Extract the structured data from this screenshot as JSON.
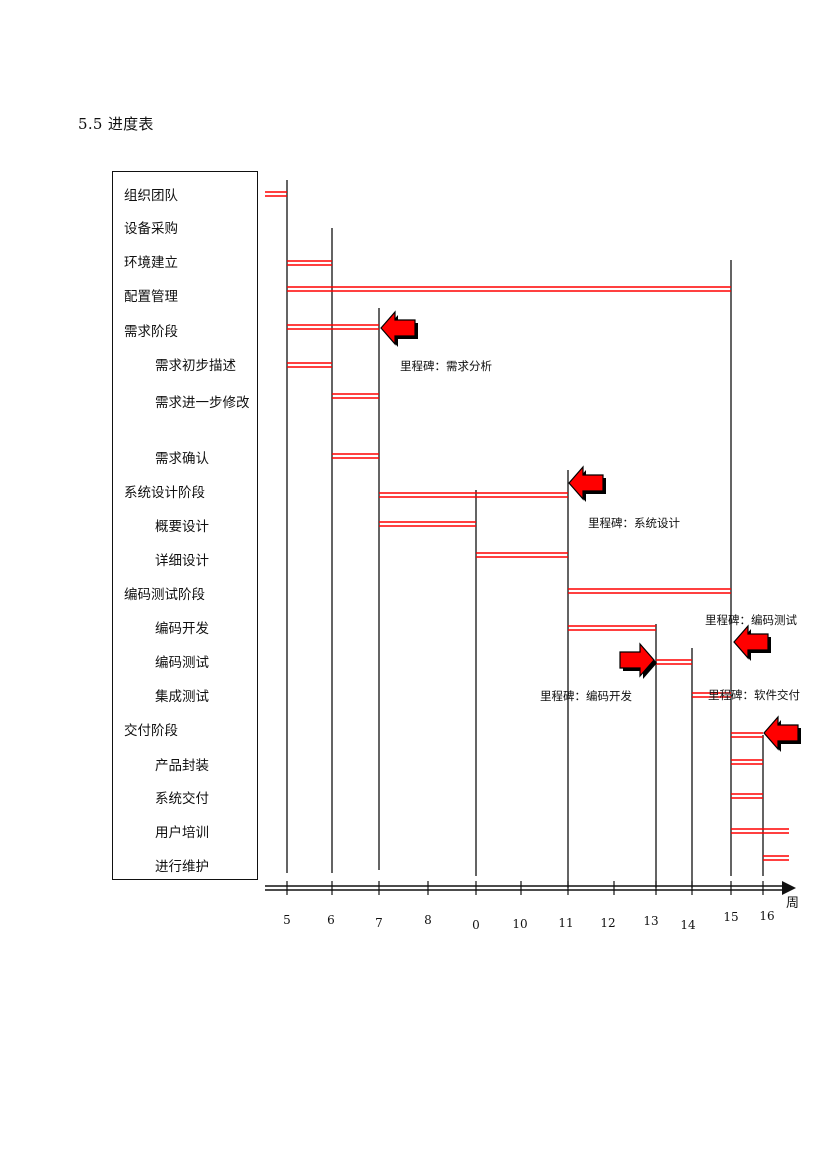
{
  "section_heading": "5.5 进度表",
  "chart_data": {
    "type": "gantt",
    "x_axis_unit": "周",
    "x_ticks": [
      "5",
      "6",
      "7",
      "8",
      "0",
      "10",
      "11",
      "12",
      "13",
      "14",
      "15",
      "16"
    ],
    "tasks": [
      {
        "name": "组织团队",
        "level": 1,
        "start": 4.5,
        "end": 5
      },
      {
        "name": "设备采购",
        "level": 1,
        "start": null,
        "end": null
      },
      {
        "name": "环境建立",
        "level": 1,
        "start": 5,
        "end": 6
      },
      {
        "name": "配置管理",
        "level": 1,
        "start": 5,
        "end": 15
      },
      {
        "name": "需求阶段",
        "level": 1,
        "start": 5,
        "end": 7
      },
      {
        "name": "需求初步描述",
        "level": 2,
        "start": 5,
        "end": 6
      },
      {
        "name": "需求进一步修改",
        "level": 2,
        "start": 6,
        "end": 7
      },
      {
        "name": "需求确认",
        "level": 2,
        "start": 6,
        "end": 7
      },
      {
        "name": "系统设计阶段",
        "level": 1,
        "start": 7,
        "end": 11
      },
      {
        "name": "概要设计",
        "level": 2,
        "start": 7,
        "end": 9
      },
      {
        "name": "详细设计",
        "level": 2,
        "start": 9,
        "end": 11
      },
      {
        "name": "编码测试阶段",
        "level": 1,
        "start": 11,
        "end": 15
      },
      {
        "name": "编码开发",
        "level": 2,
        "start": 11,
        "end": 13
      },
      {
        "name": "编码测试",
        "level": 2,
        "start": 13,
        "end": 14
      },
      {
        "name": "集成测试",
        "level": 2,
        "start": 14,
        "end": 15
      },
      {
        "name": "交付阶段",
        "level": 1,
        "start": 15,
        "end": 16
      },
      {
        "name": "产品封装",
        "level": 2,
        "start": 15,
        "end": 16
      },
      {
        "name": "系统交付",
        "level": 2,
        "start": 15,
        "end": 16
      },
      {
        "name": "用户培训",
        "level": 2,
        "start": 15,
        "end": 16.5
      },
      {
        "name": "进行维护",
        "level": 2,
        "start": 16,
        "end": 16.5
      }
    ],
    "milestones": [
      {
        "label": "里程碑：需求分析",
        "week": 7
      },
      {
        "label": "里程碑：系统设计",
        "week": 11
      },
      {
        "label": "里程碑：编码开发",
        "week": 13
      },
      {
        "label": "里程碑：编码测试",
        "week": 15
      },
      {
        "label": "里程碑：软件交付",
        "week": 16
      }
    ],
    "colors": {
      "bar": "#ff0000",
      "arrow_fill": "#ff0000",
      "arrow_stroke": "#000000",
      "lines": "#111111"
    }
  }
}
